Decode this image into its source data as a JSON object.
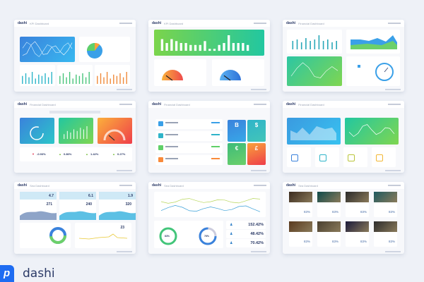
{
  "brand": {
    "name": "dashi",
    "logo_color": "#1e6cf2"
  },
  "panels": [
    {
      "brand": "dashi",
      "title": "KPI Dashboard",
      "bars": [
        6,
        8,
        5,
        9,
        4,
        7,
        6,
        8,
        5,
        9
      ]
    },
    {
      "brand": "dashi",
      "title": "KPI Dashboard",
      "bars": [
        6,
        4,
        6,
        5,
        4,
        4,
        3,
        3,
        3,
        5,
        1,
        1,
        3,
        4,
        8,
        4,
        4,
        4,
        3
      ]
    },
    {
      "brand": "dashi",
      "title": "Financial Dashboard",
      "bars": [
        6,
        7,
        5,
        8,
        6,
        7,
        10,
        6,
        7,
        5,
        6
      ]
    },
    {
      "brand": "dashi",
      "title": "Financial Dashboard",
      "stats": [
        "-0.93%",
        "0.86%",
        "1.42%",
        "0.27%"
      ]
    },
    {
      "brand": "dashi",
      "title": "Financial Dashboard",
      "symbols": [
        "B",
        "$",
        "€",
        "£"
      ]
    },
    {
      "brand": "dashi",
      "title": "Financial Dashboard"
    },
    {
      "brand": "dashi",
      "title": "Sea Dashboard",
      "top": [
        "4.7",
        "6.1",
        "1.9"
      ],
      "mid": [
        "271",
        "240",
        "320"
      ],
      "aside": "23"
    },
    {
      "brand": "dashi",
      "title": "Sea Dashboard",
      "rings": [
        "83%",
        "76%"
      ],
      "values": [
        "152.42%",
        "48.42%",
        "70.42%"
      ]
    },
    {
      "brand": "dashi",
      "title": "Sea Dashboard",
      "pct": "83%"
    }
  ],
  "colors": {
    "blue": "#3aa0e8",
    "green": "#5fd068",
    "orange": "#f9a23a",
    "red": "#ef4b4b",
    "navy": "#2b3a67"
  }
}
